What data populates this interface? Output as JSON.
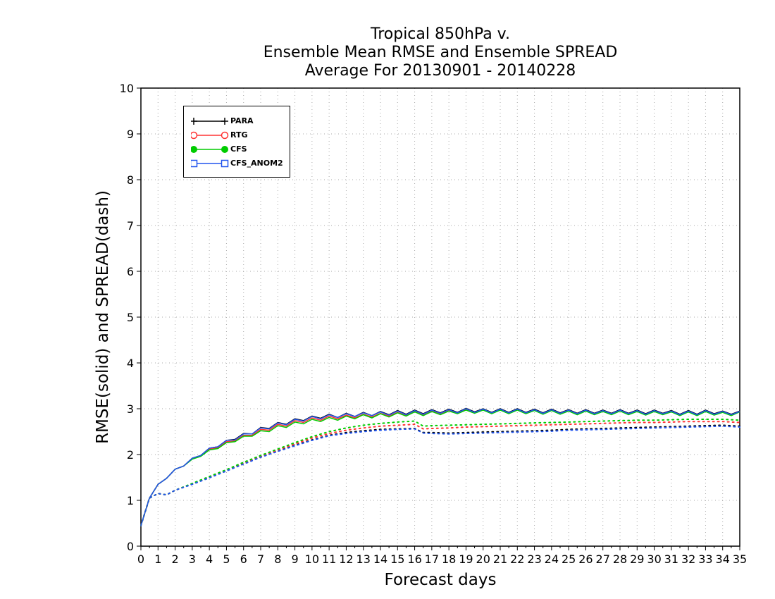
{
  "chart_data": {
    "type": "line",
    "title_lines": [
      "Tropical 850hPa v.",
      "Ensemble Mean RMSE and Ensemble SPREAD",
      "Average For 20130901 - 20140228"
    ],
    "xlabel": "Forecast days",
    "ylabel": "RMSE(solid) and SPREAD(dash)",
    "xlim": [
      0,
      35
    ],
    "ylim": [
      0,
      10
    ],
    "x_ticks": [
      0,
      1,
      2,
      3,
      4,
      5,
      6,
      7,
      8,
      9,
      10,
      11,
      12,
      13,
      14,
      15,
      16,
      17,
      18,
      19,
      20,
      21,
      22,
      23,
      24,
      25,
      26,
      27,
      28,
      29,
      30,
      31,
      32,
      33,
      34,
      35
    ],
    "y_ticks": [
      0,
      1,
      2,
      3,
      4,
      5,
      6,
      7,
      8,
      9,
      10
    ],
    "grid": true,
    "legend_position": "top-left",
    "series": [
      {
        "name": "PARA",
        "color": "#000000",
        "marker": "plus",
        "line_style": "solid",
        "x": [
          0,
          0.5,
          1,
          1.5,
          2,
          2.5,
          3,
          3.5,
          4,
          4.5,
          5,
          5.5,
          6,
          6.5,
          7,
          7.5,
          8,
          8.5,
          9,
          9.5,
          10,
          10.5,
          11,
          11.5,
          12,
          12.5,
          13,
          13.5,
          14,
          14.5,
          15,
          15.5,
          16,
          16.5,
          17,
          17.5,
          18,
          18.5,
          19,
          19.5,
          20,
          20.5,
          21,
          21.5,
          22,
          22.5,
          23,
          23.5,
          24,
          24.5,
          25,
          25.5,
          26,
          26.5,
          27,
          27.5,
          28,
          28.5,
          29,
          29.5,
          30,
          30.5,
          31,
          31.5,
          32,
          32.5,
          33,
          33.5,
          34,
          34.5,
          35
        ],
        "y": [
          0.45,
          1.05,
          1.35,
          1.48,
          1.68,
          1.75,
          1.92,
          1.98,
          2.14,
          2.17,
          2.31,
          2.33,
          2.46,
          2.45,
          2.59,
          2.57,
          2.7,
          2.66,
          2.78,
          2.74,
          2.84,
          2.79,
          2.88,
          2.81,
          2.9,
          2.83,
          2.92,
          2.85,
          2.94,
          2.87,
          2.96,
          2.88,
          2.97,
          2.89,
          2.98,
          2.91,
          2.99,
          2.92,
          3.01,
          2.93,
          3.0,
          2.92,
          3.0,
          2.92,
          3.0,
          2.92,
          2.99,
          2.91,
          2.99,
          2.91,
          2.98,
          2.9,
          2.98,
          2.9,
          2.97,
          2.9,
          2.98,
          2.9,
          2.97,
          2.89,
          2.97,
          2.9,
          2.96,
          2.88,
          2.96,
          2.88,
          2.97,
          2.89,
          2.95,
          2.88,
          2.95
        ]
      },
      {
        "name": "RTG",
        "color": "#ff3333",
        "marker": "circle-open",
        "line_style": "solid",
        "x": [
          0,
          0.5,
          1,
          1.5,
          2,
          2.5,
          3,
          3.5,
          4,
          4.5,
          5,
          5.5,
          6,
          6.5,
          7,
          7.5,
          8,
          8.5,
          9,
          9.5,
          10,
          10.5,
          11,
          11.5,
          12,
          12.5,
          13,
          13.5,
          14,
          14.5,
          15,
          15.5,
          16,
          16.5,
          17,
          17.5,
          18,
          18.5,
          19,
          19.5,
          20,
          20.5,
          21,
          21.5,
          22,
          22.5,
          23,
          23.5,
          24,
          24.5,
          25,
          25.5,
          26,
          26.5,
          27,
          27.5,
          28,
          28.5,
          29,
          29.5,
          30,
          30.5,
          31,
          31.5,
          32,
          32.5,
          33,
          33.5,
          34,
          34.5,
          35
        ],
        "y": [
          0.45,
          1.05,
          1.35,
          1.48,
          1.68,
          1.75,
          1.91,
          1.97,
          2.12,
          2.15,
          2.28,
          2.3,
          2.42,
          2.42,
          2.55,
          2.53,
          2.66,
          2.62,
          2.74,
          2.7,
          2.8,
          2.75,
          2.84,
          2.78,
          2.86,
          2.8,
          2.88,
          2.82,
          2.9,
          2.84,
          2.92,
          2.85,
          2.94,
          2.86,
          2.95,
          2.88,
          2.96,
          2.9,
          2.98,
          2.91,
          2.98,
          2.9,
          2.98,
          2.9,
          2.98,
          2.9,
          2.97,
          2.89,
          2.97,
          2.89,
          2.96,
          2.88,
          2.96,
          2.88,
          2.95,
          2.88,
          2.96,
          2.88,
          2.95,
          2.87,
          2.95,
          2.88,
          2.94,
          2.86,
          2.94,
          2.86,
          2.95,
          2.87,
          2.93,
          2.86,
          2.94
        ]
      },
      {
        "name": "CFS",
        "color": "#00cc00",
        "marker": "circle-filled",
        "line_style": "solid",
        "x": [
          0,
          0.5,
          1,
          1.5,
          2,
          2.5,
          3,
          3.5,
          4,
          4.5,
          5,
          5.5,
          6,
          6.5,
          7,
          7.5,
          8,
          8.5,
          9,
          9.5,
          10,
          10.5,
          11,
          11.5,
          12,
          12.5,
          13,
          13.5,
          14,
          14.5,
          15,
          15.5,
          16,
          16.5,
          17,
          17.5,
          18,
          18.5,
          19,
          19.5,
          20,
          20.5,
          21,
          21.5,
          22,
          22.5,
          23,
          23.5,
          24,
          24.5,
          25,
          25.5,
          26,
          26.5,
          27,
          27.5,
          28,
          28.5,
          29,
          29.5,
          30,
          30.5,
          31,
          31.5,
          32,
          32.5,
          33,
          33.5,
          34,
          34.5,
          35
        ],
        "y": [
          0.45,
          1.05,
          1.35,
          1.48,
          1.68,
          1.75,
          1.9,
          1.96,
          2.1,
          2.13,
          2.26,
          2.28,
          2.4,
          2.4,
          2.52,
          2.5,
          2.63,
          2.59,
          2.71,
          2.67,
          2.77,
          2.72,
          2.81,
          2.75,
          2.84,
          2.78,
          2.87,
          2.8,
          2.89,
          2.82,
          2.91,
          2.84,
          2.93,
          2.85,
          2.94,
          2.87,
          2.95,
          2.89,
          2.97,
          2.9,
          2.97,
          2.89,
          2.97,
          2.89,
          2.97,
          2.89,
          2.96,
          2.88,
          2.96,
          2.88,
          2.95,
          2.87,
          2.95,
          2.87,
          2.94,
          2.87,
          2.95,
          2.87,
          2.94,
          2.86,
          2.94,
          2.87,
          2.93,
          2.85,
          2.93,
          2.85,
          2.94,
          2.86,
          2.92,
          2.85,
          2.93
        ]
      },
      {
        "name": "CFS_ANOM2",
        "color": "#2255ee",
        "marker": "square-open",
        "line_style": "solid",
        "x": [
          0,
          0.5,
          1,
          1.5,
          2,
          2.5,
          3,
          3.5,
          4,
          4.5,
          5,
          5.5,
          6,
          6.5,
          7,
          7.5,
          8,
          8.5,
          9,
          9.5,
          10,
          10.5,
          11,
          11.5,
          12,
          12.5,
          13,
          13.5,
          14,
          14.5,
          15,
          15.5,
          16,
          16.5,
          17,
          17.5,
          18,
          18.5,
          19,
          19.5,
          20,
          20.5,
          21,
          21.5,
          22,
          22.5,
          23,
          23.5,
          24,
          24.5,
          25,
          25.5,
          26,
          26.5,
          27,
          27.5,
          28,
          28.5,
          29,
          29.5,
          30,
          30.5,
          31,
          31.5,
          32,
          32.5,
          33,
          33.5,
          34,
          34.5,
          35
        ],
        "y": [
          0.45,
          1.05,
          1.35,
          1.48,
          1.68,
          1.75,
          1.92,
          1.98,
          2.14,
          2.17,
          2.31,
          2.32,
          2.45,
          2.45,
          2.58,
          2.56,
          2.69,
          2.65,
          2.77,
          2.73,
          2.83,
          2.78,
          2.87,
          2.81,
          2.89,
          2.83,
          2.91,
          2.85,
          2.93,
          2.86,
          2.95,
          2.87,
          2.96,
          2.88,
          2.97,
          2.9,
          2.98,
          2.91,
          3.0,
          2.92,
          2.99,
          2.91,
          2.99,
          2.91,
          2.99,
          2.91,
          2.98,
          2.9,
          2.98,
          2.9,
          2.97,
          2.89,
          2.97,
          2.89,
          2.96,
          2.89,
          2.97,
          2.89,
          2.96,
          2.88,
          2.96,
          2.89,
          2.95,
          2.87,
          2.95,
          2.87,
          2.96,
          2.88,
          2.94,
          2.87,
          2.94
        ]
      }
    ],
    "spread_series": [
      {
        "color": "#000000",
        "line_style": "dotted",
        "x": [
          0,
          0.5,
          1,
          1.5,
          2,
          3,
          4,
          5,
          6,
          7,
          8,
          9,
          10,
          11,
          12,
          13,
          14,
          15,
          16,
          16.5,
          17,
          18,
          19,
          20,
          21,
          22,
          23,
          24,
          25,
          26,
          27,
          28,
          29,
          30,
          31,
          32,
          33,
          34,
          35
        ],
        "y": [
          0.45,
          1.05,
          1.15,
          1.12,
          1.22,
          1.36,
          1.5,
          1.65,
          1.8,
          1.95,
          2.08,
          2.2,
          2.32,
          2.42,
          2.48,
          2.52,
          2.55,
          2.56,
          2.57,
          2.48,
          2.48,
          2.47,
          2.48,
          2.49,
          2.5,
          2.51,
          2.52,
          2.53,
          2.55,
          2.56,
          2.57,
          2.58,
          2.59,
          2.6,
          2.61,
          2.62,
          2.63,
          2.64,
          2.62
        ]
      },
      {
        "color": "#ff3333",
        "line_style": "dotted",
        "x": [
          0,
          0.5,
          1,
          1.5,
          2,
          3,
          4,
          5,
          6,
          7,
          8,
          9,
          10,
          11,
          12,
          13,
          14,
          15,
          16,
          16.5,
          17,
          18,
          19,
          20,
          21,
          22,
          23,
          24,
          25,
          26,
          27,
          28,
          29,
          30,
          31,
          32,
          33,
          34,
          35
        ],
        "y": [
          0.45,
          1.05,
          1.15,
          1.12,
          1.22,
          1.36,
          1.5,
          1.65,
          1.81,
          1.96,
          2.1,
          2.23,
          2.36,
          2.46,
          2.53,
          2.58,
          2.62,
          2.64,
          2.66,
          2.56,
          2.57,
          2.58,
          2.6,
          2.61,
          2.62,
          2.63,
          2.64,
          2.65,
          2.66,
          2.67,
          2.68,
          2.69,
          2.7,
          2.7,
          2.71,
          2.72,
          2.72,
          2.72,
          2.7
        ]
      },
      {
        "color": "#00cc00",
        "line_style": "dotted",
        "x": [
          0,
          0.5,
          1,
          1.5,
          2,
          3,
          4,
          5,
          6,
          7,
          8,
          9,
          10,
          11,
          12,
          13,
          14,
          15,
          16,
          16.5,
          17,
          18,
          19,
          20,
          21,
          22,
          23,
          24,
          25,
          26,
          27,
          28,
          29,
          30,
          31,
          32,
          33,
          34,
          35
        ],
        "y": [
          0.45,
          1.05,
          1.15,
          1.12,
          1.22,
          1.37,
          1.52,
          1.67,
          1.83,
          1.98,
          2.12,
          2.26,
          2.39,
          2.5,
          2.58,
          2.64,
          2.68,
          2.71,
          2.73,
          2.62,
          2.63,
          2.64,
          2.65,
          2.66,
          2.67,
          2.68,
          2.69,
          2.7,
          2.71,
          2.72,
          2.73,
          2.74,
          2.75,
          2.75,
          2.76,
          2.77,
          2.77,
          2.77,
          2.75
        ]
      },
      {
        "color": "#2255ee",
        "line_style": "dotted",
        "x": [
          0,
          0.5,
          1,
          1.5,
          2,
          3,
          4,
          5,
          6,
          7,
          8,
          9,
          10,
          11,
          12,
          13,
          14,
          15,
          16,
          16.5,
          17,
          18,
          19,
          20,
          21,
          22,
          23,
          24,
          25,
          26,
          27,
          28,
          29,
          30,
          31,
          32,
          33,
          34,
          35
        ],
        "y": [
          0.45,
          1.05,
          1.15,
          1.12,
          1.22,
          1.35,
          1.49,
          1.64,
          1.79,
          1.94,
          2.07,
          2.19,
          2.31,
          2.41,
          2.46,
          2.5,
          2.53,
          2.55,
          2.56,
          2.47,
          2.46,
          2.45,
          2.46,
          2.47,
          2.48,
          2.49,
          2.5,
          2.51,
          2.53,
          2.54,
          2.55,
          2.56,
          2.57,
          2.58,
          2.59,
          2.6,
          2.61,
          2.62,
          2.6
        ]
      }
    ]
  }
}
